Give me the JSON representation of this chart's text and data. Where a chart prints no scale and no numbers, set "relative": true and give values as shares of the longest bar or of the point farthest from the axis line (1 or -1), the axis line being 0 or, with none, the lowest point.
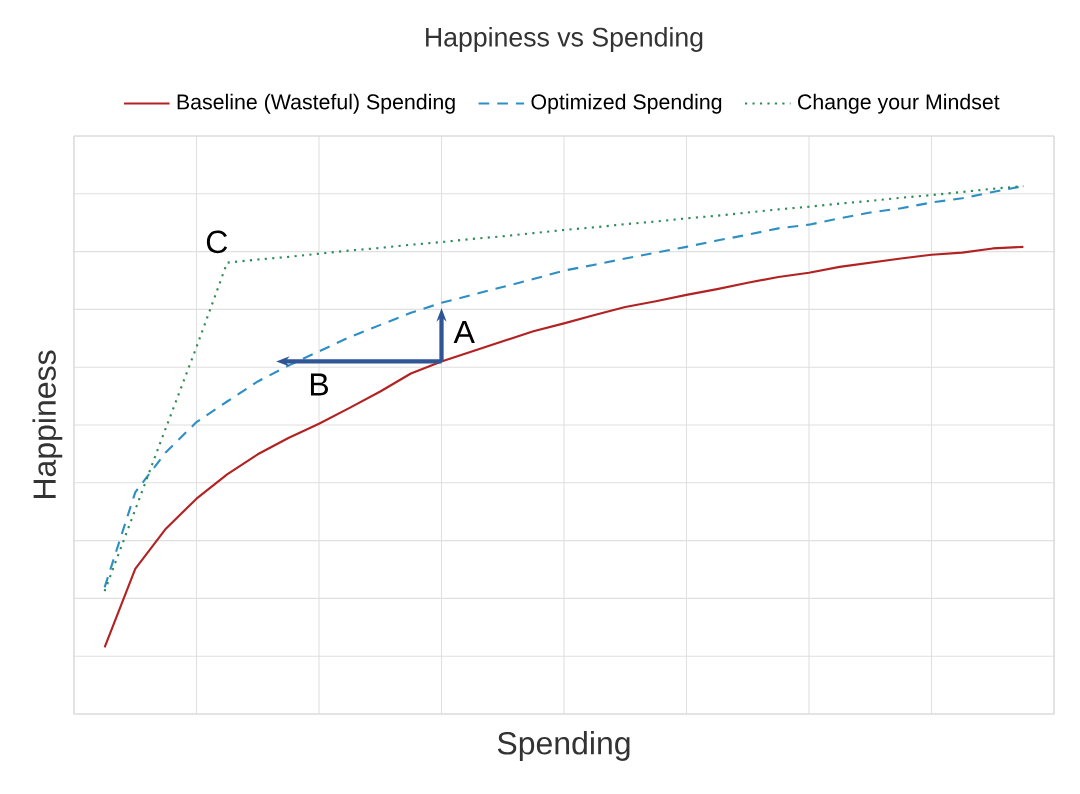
{
  "chart_data": {
    "type": "line",
    "title": "Happiness vs Spending",
    "xlabel": "Spending",
    "ylabel": "Happiness",
    "relative": true,
    "grid": true,
    "legend": "top",
    "categories": [
      null,
      null,
      null,
      null,
      null,
      null,
      null,
      null,
      null,
      null,
      null,
      null,
      null,
      null,
      null,
      null,
      null,
      null,
      null,
      null,
      null,
      null,
      null,
      null,
      null,
      null,
      null,
      null,
      null,
      null,
      null
    ],
    "series": [
      {
        "name": "Baseline (Wasteful) Spending",
        "color": "#b22222",
        "line_style": "solid",
        "values": [
          0.126,
          0.275,
          0.351,
          0.408,
          0.454,
          0.492,
          0.523,
          0.55,
          0.58,
          0.611,
          0.645,
          0.668,
          0.687,
          0.706,
          0.725,
          0.74,
          0.756,
          0.771,
          0.782,
          0.794,
          0.805,
          0.817,
          0.828,
          0.836,
          0.847,
          0.855,
          0.863,
          0.87,
          0.874,
          0.882,
          0.885
        ]
      },
      {
        "name": "Optimized Spending",
        "color": "#2e8fc4",
        "line_style": "dashed",
        "values": [
          0.24,
          0.42,
          0.496,
          0.553,
          0.592,
          0.63,
          0.66,
          0.687,
          0.714,
          0.737,
          0.76,
          0.779,
          0.794,
          0.809,
          0.824,
          0.84,
          0.851,
          0.863,
          0.874,
          0.885,
          0.897,
          0.908,
          0.92,
          0.927,
          0.939,
          0.95,
          0.958,
          0.969,
          0.977,
          0.989,
          1.0
        ]
      },
      {
        "name": "Change your Mindset",
        "color": "#2e8b57",
        "line_style": "dotted",
        "values": [
          0.233,
          0.387,
          0.542,
          0.695,
          0.855,
          0.861,
          0.866,
          0.872,
          0.878,
          0.883,
          0.889,
          0.894,
          0.9,
          0.905,
          0.911,
          0.917,
          0.922,
          0.928,
          0.933,
          0.939,
          0.944,
          0.95,
          0.956,
          0.961,
          0.967,
          0.972,
          0.978,
          0.983,
          0.989,
          0.995,
          1.0
        ]
      }
    ],
    "annotations": [
      "A",
      "B",
      "C"
    ]
  }
}
